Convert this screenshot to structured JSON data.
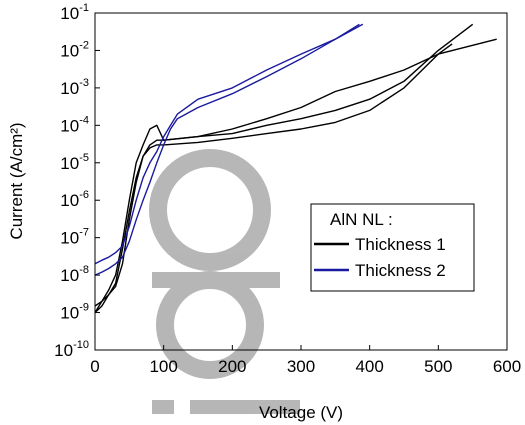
{
  "chart_data": {
    "type": "line",
    "xlabel": "Voltage (V)",
    "ylabel": "Current (A/cm²)",
    "xlim": [
      0,
      600
    ],
    "ylim": [
      1e-10,
      0.1
    ],
    "y_scale": "log",
    "x_ticks": [
      0,
      100,
      200,
      300,
      400,
      500,
      600
    ],
    "y_ticks": [
      {
        "base": "10",
        "exp": "-10",
        "value": 1e-10
      },
      {
        "base": "10",
        "exp": "-9",
        "value": 1e-09
      },
      {
        "base": "10",
        "exp": "-8",
        "value": 1e-08
      },
      {
        "base": "10",
        "exp": "-7",
        "value": 1e-07
      },
      {
        "base": "10",
        "exp": "-6",
        "value": 1e-06
      },
      {
        "base": "10",
        "exp": "-5",
        "value": 1e-05
      },
      {
        "base": "10",
        "exp": "-4",
        "value": 0.0001
      },
      {
        "base": "10",
        "exp": "-3",
        "value": 0.001
      },
      {
        "base": "10",
        "exp": "-2",
        "value": 0.01
      },
      {
        "base": "10",
        "exp": "-1",
        "value": 0.1
      }
    ],
    "grid": false,
    "legend": {
      "title": "AlN NL :",
      "placement": "center-right",
      "entries": [
        {
          "name": "Thickness 1",
          "color": "#000000"
        },
        {
          "name": "Thickness 2",
          "color": "#1a1aa0"
        }
      ]
    },
    "series": [
      {
        "name": "Thickness 1",
        "color": "#000000",
        "x": [
          0,
          10,
          20,
          30,
          40,
          50,
          60,
          70,
          80,
          90,
          100,
          150,
          200,
          250,
          300,
          350,
          400,
          450,
          500,
          550
        ],
        "y": [
          1e-09,
          2e-09,
          3e-09,
          5e-09,
          2e-08,
          3e-07,
          3e-06,
          1.5e-05,
          3e-05,
          4e-05,
          4e-05,
          5e-05,
          6e-05,
          0.0001,
          0.00015,
          0.00025,
          0.0005,
          0.0015,
          0.01,
          0.05
        ]
      },
      {
        "name": "Thickness 1",
        "color": "#000000",
        "x": [
          0,
          10,
          20,
          30,
          40,
          50,
          60,
          70,
          80,
          90,
          100,
          150,
          200,
          250,
          300,
          350,
          400,
          450,
          500,
          520
        ],
        "y": [
          1.5e-09,
          2e-09,
          4e-09,
          1e-08,
          8e-08,
          1e-06,
          1e-05,
          3e-05,
          8e-05,
          0.0001,
          4e-05,
          5e-05,
          8e-05,
          0.00015,
          0.0003,
          0.0008,
          0.0015,
          0.003,
          0.008,
          0.015
        ]
      },
      {
        "name": "Thickness 1",
        "color": "#000000",
        "x": [
          0,
          10,
          20,
          30,
          40,
          50,
          60,
          70,
          80,
          90,
          100,
          150,
          200,
          250,
          300,
          350,
          400,
          450,
          500,
          585
        ],
        "y": [
          1e-09,
          1.5e-09,
          3e-09,
          6e-09,
          5e-08,
          5e-07,
          4e-06,
          1.5e-05,
          2.5e-05,
          3e-05,
          3e-05,
          3.5e-05,
          4.5e-05,
          6e-05,
          8e-05,
          0.00012,
          0.00025,
          0.001,
          0.008,
          0.02
        ]
      },
      {
        "name": "Thickness 2",
        "color": "#1a1aa0",
        "x": [
          0,
          10,
          20,
          30,
          40,
          50,
          60,
          70,
          80,
          90,
          100,
          110,
          120,
          150,
          200,
          250,
          300,
          350,
          390
        ],
        "y": [
          2e-08,
          2.5e-08,
          3e-08,
          4e-08,
          6e-08,
          2e-07,
          1e-06,
          4e-06,
          1e-05,
          2e-05,
          5e-05,
          0.0001,
          0.0002,
          0.0005,
          0.001,
          0.003,
          0.008,
          0.02,
          0.05
        ]
      },
      {
        "name": "Thickness 2",
        "color": "#1a1aa0",
        "x": [
          0,
          10,
          20,
          30,
          40,
          50,
          60,
          70,
          80,
          90,
          100,
          110,
          120,
          150,
          200,
          250,
          300,
          350,
          385
        ],
        "y": [
          1e-08,
          1.2e-08,
          1.5e-08,
          2e-08,
          3e-08,
          8e-08,
          3e-07,
          1e-06,
          3e-06,
          1e-05,
          3e-05,
          8e-05,
          0.00015,
          0.0003,
          0.0007,
          0.002,
          0.006,
          0.02,
          0.05
        ]
      }
    ]
  }
}
